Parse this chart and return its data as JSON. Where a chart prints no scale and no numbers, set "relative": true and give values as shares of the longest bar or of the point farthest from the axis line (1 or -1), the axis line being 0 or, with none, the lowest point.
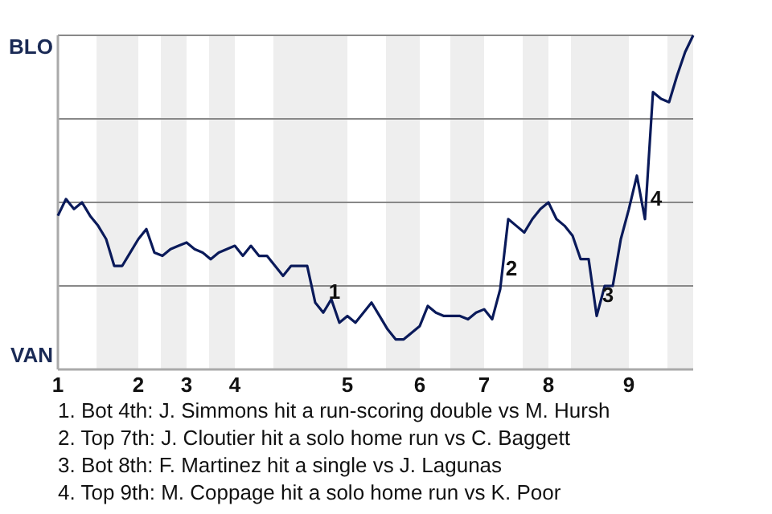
{
  "chart_data": {
    "type": "line",
    "categories": [
      "1",
      null,
      null,
      null,
      null,
      null,
      null,
      null,
      null,
      null,
      "2",
      null,
      null,
      null,
      null,
      null,
      "3",
      null,
      null,
      null,
      null,
      null,
      "4",
      null,
      null,
      null,
      null,
      null,
      null,
      null,
      null,
      null,
      null,
      null,
      null,
      null,
      "5",
      null,
      null,
      null,
      null,
      null,
      null,
      null,
      null,
      "6",
      null,
      null,
      null,
      null,
      null,
      null,
      null,
      "7",
      null,
      null,
      null,
      null,
      null,
      null,
      null,
      "8",
      null,
      null,
      null,
      null,
      null,
      null,
      null,
      null,
      null,
      "9",
      null,
      null,
      null,
      null,
      null,
      null,
      null,
      null
    ],
    "relative": true,
    "series": [
      {
        "color": "#0a1a5a",
        "values": [
          0.46,
          0.51,
          0.48,
          0.5,
          0.46,
          0.43,
          0.39,
          0.31,
          0.31,
          0.35,
          0.39,
          0.42,
          0.35,
          0.34,
          0.36,
          0.37,
          0.38,
          0.36,
          0.35,
          0.33,
          0.35,
          0.36,
          0.37,
          0.34,
          0.37,
          0.34,
          0.34,
          0.31,
          0.28,
          0.31,
          0.31,
          0.31,
          0.2,
          0.17,
          0.21,
          0.14,
          0.16,
          0.14,
          0.17,
          0.2,
          0.16,
          0.12,
          0.09,
          0.09,
          0.11,
          0.13,
          0.19,
          0.17,
          0.16,
          0.16,
          0.16,
          0.15,
          0.17,
          0.18,
          0.15,
          0.24,
          0.45,
          0.43,
          0.41,
          0.45,
          0.48,
          0.5,
          0.45,
          0.43,
          0.4,
          0.33,
          0.33,
          0.16,
          0.25,
          0.25,
          0.39,
          0.48,
          0.58,
          0.45,
          0.83,
          0.81,
          0.8,
          0.88,
          0.95,
          1.0
        ]
      }
    ],
    "grid": "y",
    "annotations": [
      "BLO",
      "VAN",
      "1",
      "2",
      "3",
      "4",
      "1. Bot 4th: J. Simmons hit a run-scoring double vs M. Hursh",
      "2. Top 7th: J. Cloutier hit a solo home run vs C. Baggett",
      "3. Bot 8th: F. Martinez hit a single vs J. Lagunas",
      "4. Top 9th: M. Coppage hit a solo home run vs K. Poor"
    ]
  }
}
